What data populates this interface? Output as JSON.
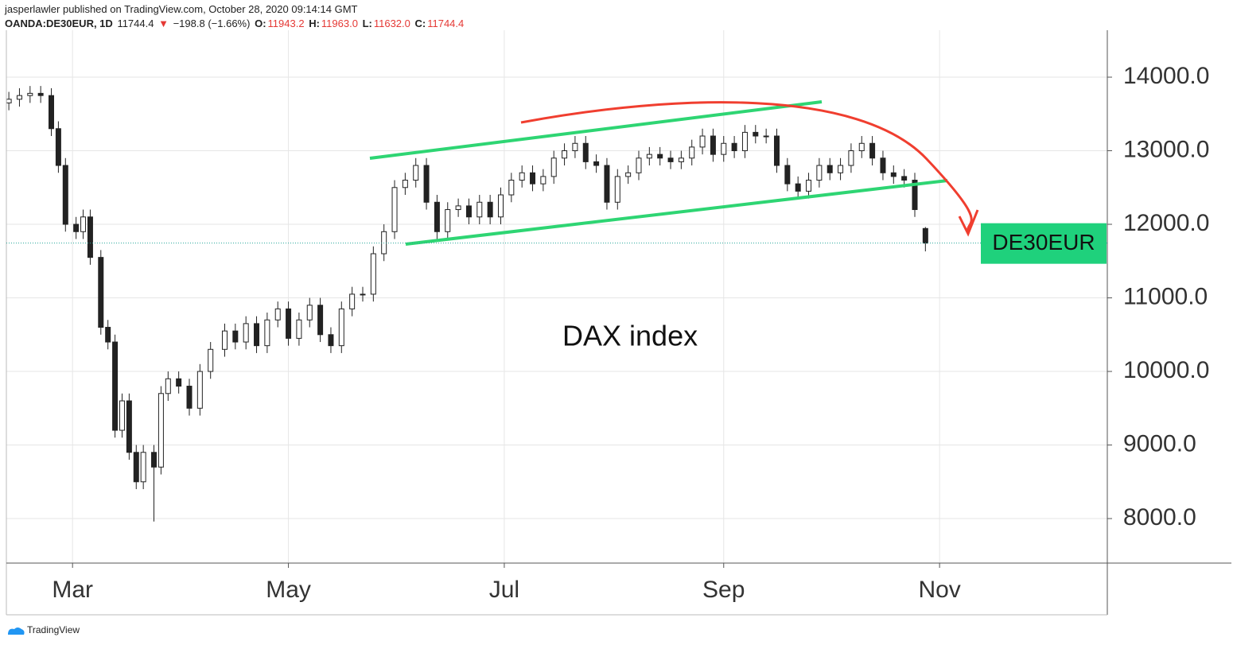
{
  "header": {
    "publisher": "jasperlawler published on TradingView.com, October 28, 2020 09:14:14 GMT",
    "symbol": "OANDA:DE30EUR, 1D",
    "last": "11744.4",
    "arrow": "▼",
    "change": "−198.8 (−1.66%)",
    "o_label": "O:",
    "o": "11943.2",
    "h_label": "H:",
    "h": "11963.0",
    "l_label": "L:",
    "l": "11632.0",
    "c_label": "C:",
    "c": "11744.4"
  },
  "footer": "TradingView",
  "chart_data": {
    "type": "candlestick",
    "annotation": "DAX index",
    "price_tag": "DE30EUR",
    "last_price": 11744.4,
    "xlim": [
      42.3,
      353.4
    ],
    "ylim": [
      7395,
      14638
    ],
    "xticks": [
      {
        "value": 61,
        "label": "Mar"
      },
      {
        "value": 122,
        "label": "May"
      },
      {
        "value": 183,
        "label": "Jul"
      },
      {
        "value": 245,
        "label": "Sep"
      },
      {
        "value": 306,
        "label": "Nov"
      }
    ],
    "yticks": [
      {
        "value": 8000,
        "label": "8000.0"
      },
      {
        "value": 9000,
        "label": "9000.0"
      },
      {
        "value": 10000,
        "label": "10000.0"
      },
      {
        "value": 11000,
        "label": "11000.0"
      },
      {
        "value": 12000,
        "label": "12000.0"
      },
      {
        "value": 13000,
        "label": "13000.0"
      },
      {
        "value": 14000,
        "label": "14000.0"
      }
    ],
    "grid": true,
    "up_color": "#ffffff",
    "down_color": "#222222",
    "x": [
      43,
      46,
      49,
      52,
      55,
      57,
      59,
      62,
      64,
      66,
      69,
      71,
      73,
      75,
      77,
      79,
      81,
      84,
      86,
      88,
      91,
      94,
      97,
      100,
      104,
      107,
      110,
      113,
      116,
      119,
      122,
      125,
      128,
      131,
      134,
      137,
      140,
      143,
      146,
      149,
      152,
      155,
      158,
      161,
      164,
      167,
      170,
      173,
      176,
      179,
      182,
      185,
      188,
      191,
      194,
      197,
      200,
      203,
      206,
      209,
      212,
      215,
      218,
      221,
      224,
      227,
      230,
      233,
      236,
      239,
      242,
      245,
      248,
      251,
      254,
      257,
      260,
      263,
      266,
      269,
      272,
      275,
      278,
      281,
      284,
      287,
      290,
      293,
      296,
      299,
      302
    ],
    "open": [
      13650,
      13700,
      13750,
      13780,
      13750,
      13300,
      12800,
      12000,
      11900,
      12100,
      11550,
      10600,
      10400,
      9200,
      9600,
      8900,
      8500,
      8900,
      8700,
      9700,
      9900,
      9800,
      9500,
      10000,
      10300,
      10550,
      10400,
      10650,
      10350,
      10700,
      10850,
      10450,
      10700,
      10900,
      10500,
      10350,
      10850,
      11050,
      11050,
      11600,
      11900,
      12500,
      12600,
      12800,
      12300,
      11900,
      12200,
      12250,
      12100,
      12300,
      12100,
      12400,
      12600,
      12700,
      12550,
      12650,
      12900,
      13000,
      13100,
      12850,
      12800,
      12300,
      12650,
      12700,
      12900,
      12950,
      12900,
      12850,
      12900,
      13050,
      13200,
      12950,
      13100,
      13000,
      13250,
      13200,
      13200,
      12800,
      12550,
      12450,
      12600,
      12800,
      12700,
      12800,
      13000,
      13100,
      12900,
      12700,
      12650,
      12600,
      11943.2
    ],
    "high": [
      13800,
      13850,
      13880,
      13880,
      13850,
      13400,
      12900,
      12100,
      12200,
      12200,
      11650,
      10700,
      10500,
      9700,
      9700,
      9000,
      9000,
      9000,
      9800,
      10000,
      10000,
      9900,
      10100,
      10400,
      10650,
      10650,
      10750,
      10750,
      10800,
      10950,
      10950,
      10800,
      11000,
      11000,
      10600,
      10950,
      11150,
      11150,
      11700,
      12000,
      12600,
      12700,
      12900,
      12900,
      12400,
      12300,
      12350,
      12350,
      12400,
      12400,
      12500,
      12700,
      12800,
      12800,
      12750,
      13000,
      13100,
      13200,
      13200,
      12950,
      12900,
      12750,
      12800,
      13000,
      13050,
      13050,
      13000,
      13000,
      13150,
      13300,
      13300,
      13200,
      13200,
      13350,
      13350,
      13300,
      13300,
      12900,
      12650,
      12700,
      12900,
      12900,
      12900,
      13100,
      13200,
      13200,
      13000,
      12800,
      12750,
      12700,
      11963
    ],
    "low": [
      13550,
      13600,
      13650,
      13650,
      13200,
      12700,
      11900,
      11800,
      11800,
      11450,
      10500,
      10300,
      9100,
      9100,
      8800,
      8400,
      8400,
      7960,
      8600,
      9600,
      9700,
      9400,
      9400,
      9900,
      10200,
      10300,
      10300,
      10250,
      10250,
      10600,
      10350,
      10350,
      10600,
      10400,
      10250,
      10250,
      10750,
      10950,
      10950,
      11500,
      11800,
      12400,
      12500,
      12200,
      11800,
      11800,
      12100,
      12000,
      12000,
      12000,
      12000,
      12300,
      12500,
      12450,
      12450,
      12550,
      12800,
      12900,
      12750,
      12700,
      12200,
      12200,
      12550,
      12600,
      12800,
      12800,
      12750,
      12750,
      12800,
      12950,
      12850,
      12850,
      12900,
      12900,
      13100,
      13100,
      12700,
      12450,
      12350,
      12350,
      12500,
      12600,
      12600,
      12700,
      12900,
      12800,
      12600,
      12550,
      12500,
      12100,
      11632
    ],
    "close": [
      13700,
      13750,
      13780,
      13750,
      13300,
      12800,
      12000,
      11900,
      12100,
      11550,
      10600,
      10400,
      9200,
      9600,
      8900,
      8500,
      8900,
      8700,
      9700,
      9900,
      9800,
      9500,
      10000,
      10300,
      10550,
      10400,
      10650,
      10350,
      10700,
      10850,
      10450,
      10700,
      10900,
      10500,
      10350,
      10850,
      11050,
      11050,
      11600,
      11900,
      12500,
      12600,
      12800,
      12300,
      11900,
      12200,
      12250,
      12100,
      12300,
      12100,
      12400,
      12600,
      12700,
      12550,
      12650,
      12900,
      13000,
      13100,
      12850,
      12800,
      12300,
      12650,
      12700,
      12900,
      12950,
      12900,
      12850,
      12900,
      13050,
      13200,
      12950,
      13100,
      13000,
      13250,
      13200,
      13200,
      12800,
      12550,
      12450,
      12600,
      12800,
      12700,
      12800,
      13000,
      13100,
      12900,
      12700,
      12650,
      12600,
      12200,
      11744.4
    ]
  }
}
